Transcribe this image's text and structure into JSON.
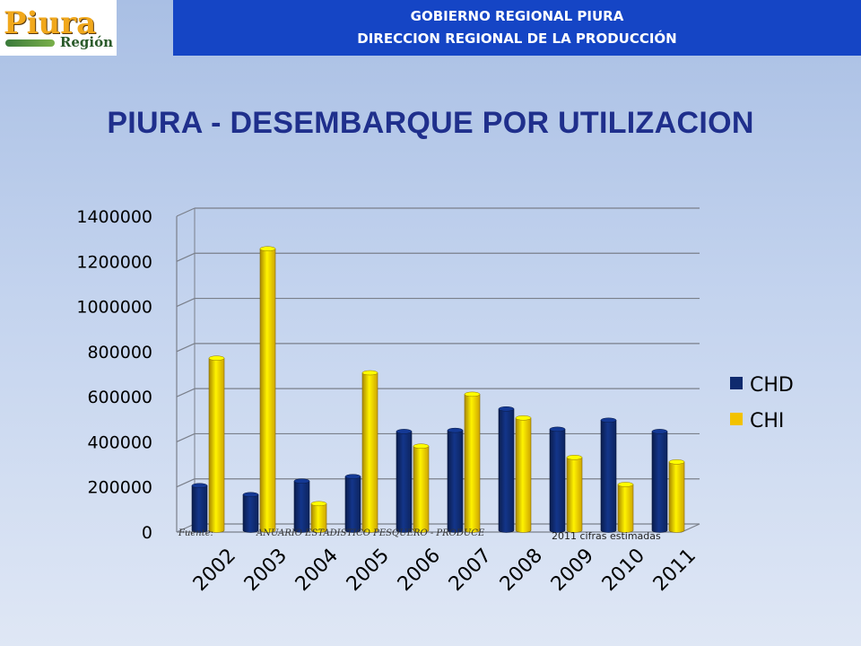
{
  "logo": {
    "word": "Piura",
    "sub": "Región"
  },
  "header": {
    "line1": "GOBIERNO REGIONAL PIURA",
    "line2": "DIRECCION REGIONAL DE LA PRODUCCIÓN"
  },
  "title": "PIURA - DESEMBARQUE POR UTILIZACION",
  "source": {
    "label": "Fuente:",
    "text": "ANUARIO ESTADISTICO PESQUERO - PRODUCE",
    "note": "2011 cifras estimadas"
  },
  "chart_data": {
    "type": "bar",
    "categories": [
      "2002",
      "2003",
      "2004",
      "2005",
      "2006",
      "2007",
      "2008",
      "2009",
      "2010",
      "2011"
    ],
    "series": [
      {
        "name": "CHD",
        "color": "#0f2a6e",
        "values": [
          190000,
          150000,
          210000,
          230000,
          430000,
          435000,
          530000,
          440000,
          480000,
          430000
        ]
      },
      {
        "name": "CHI",
        "color": "#f2c200",
        "values": [
          755000,
          1240000,
          110000,
          690000,
          365000,
          595000,
          490000,
          315000,
          195000,
          295000
        ]
      }
    ],
    "ylim": [
      0,
      1400000
    ],
    "yticks": [
      "0",
      "200000",
      "400000",
      "600000",
      "800000",
      "1000000",
      "1200000",
      "1400000"
    ],
    "grid": true,
    "legend_position": "right"
  }
}
